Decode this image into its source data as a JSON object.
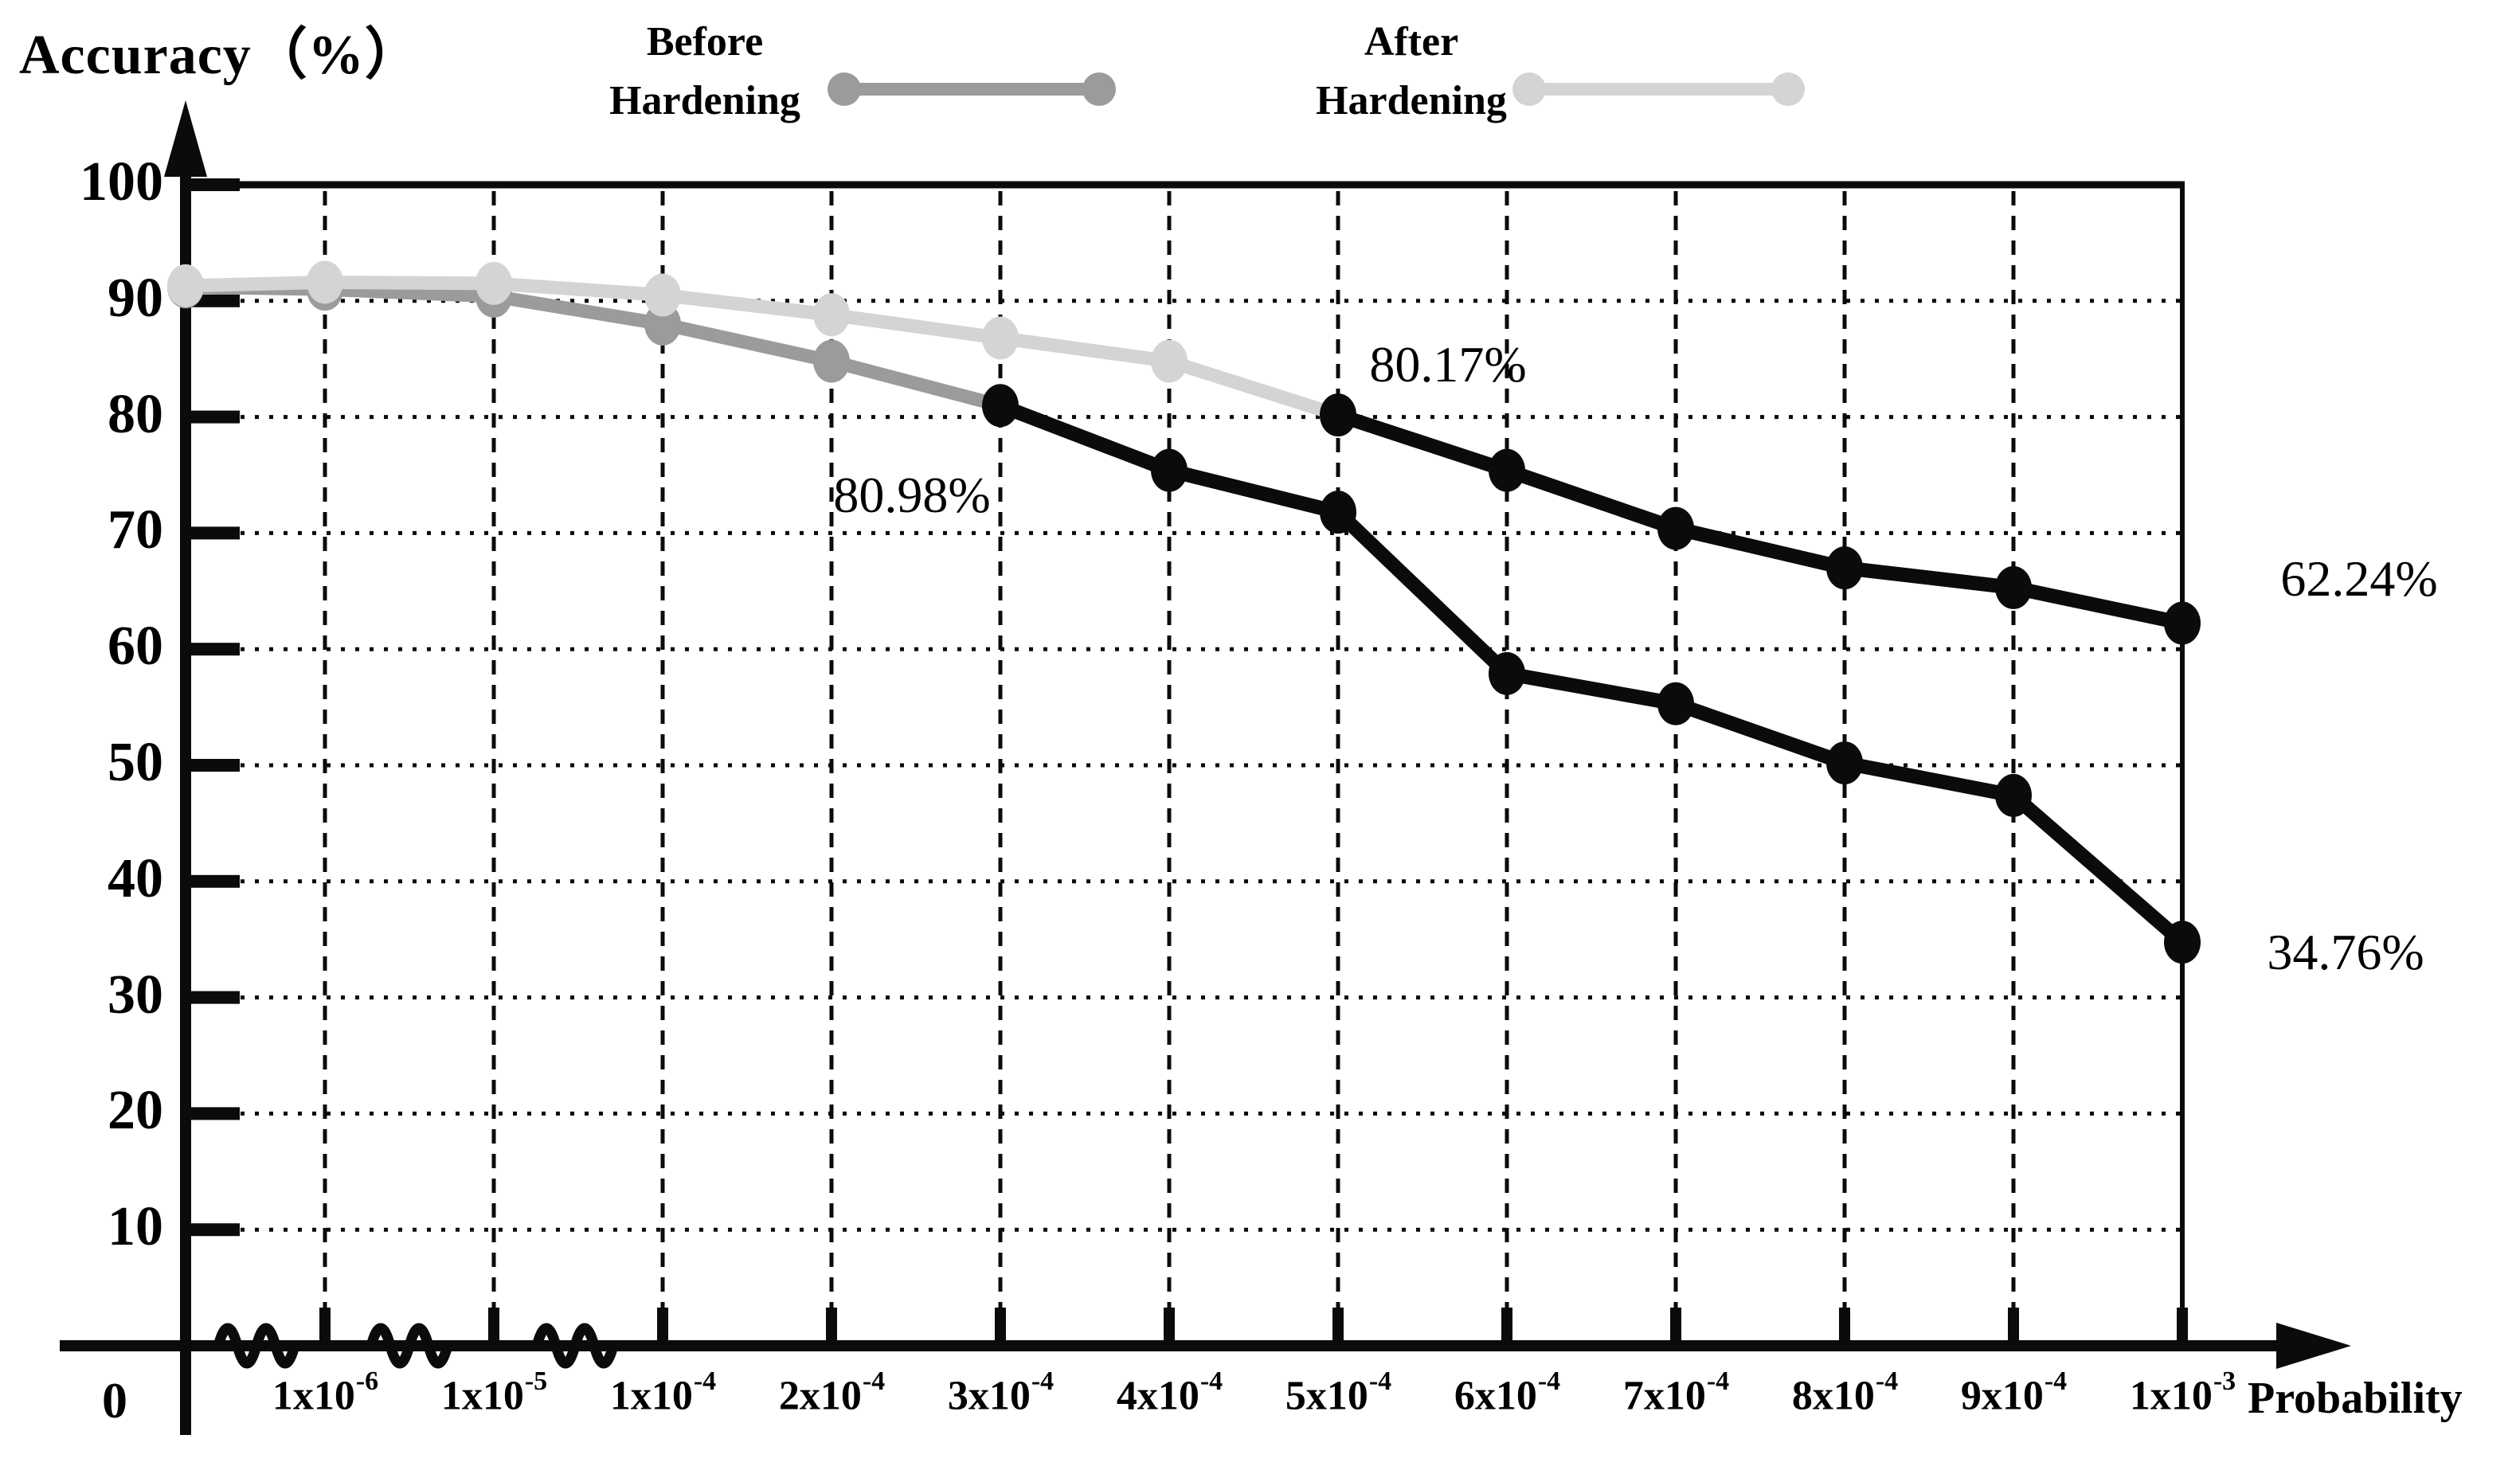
{
  "title": "Accuracy（%）",
  "legend": {
    "items": [
      {
        "line1": "Before",
        "line2": "Hardening",
        "color": "#9b9b9b"
      },
      {
        "line1": "After",
        "line2": "Hardening",
        "color": "#d4d4d4"
      }
    ]
  },
  "chart_data": {
    "type": "line",
    "title": "Accuracy（%）",
    "xlabel": "Probability",
    "ylabel": "Accuracy (%)",
    "grid": true,
    "x_axis_has_scale_breaks": true,
    "y_axis": {
      "min": 0,
      "max": 100,
      "tick_step": 10,
      "ticks": [
        100,
        90,
        80,
        70,
        60,
        50,
        40,
        30,
        20,
        10
      ],
      "origin_label": "0"
    },
    "x_ticks": [
      {
        "base": "1x10",
        "exp": "-6"
      },
      {
        "base": "1x10",
        "exp": "-5"
      },
      {
        "base": "1x10",
        "exp": "-4"
      },
      {
        "base": "2x10",
        "exp": "-4"
      },
      {
        "base": "3x10",
        "exp": "-4"
      },
      {
        "base": "4x10",
        "exp": "-4"
      },
      {
        "base": "5x10",
        "exp": "-4"
      },
      {
        "base": "6x10",
        "exp": "-4"
      },
      {
        "base": "7x10",
        "exp": "-4"
      },
      {
        "base": "8x10",
        "exp": "-4"
      },
      {
        "base": "9x10",
        "exp": "-4"
      },
      {
        "base": "1x10",
        "exp": "-3"
      }
    ],
    "x": [
      "0",
      "1x10⁻⁶",
      "1x10⁻⁵",
      "1x10⁻⁴",
      "2x10⁻⁴",
      "3x10⁻⁴",
      "4x10⁻⁴",
      "5x10⁻⁴",
      "6x10⁻⁴",
      "7x10⁻⁴",
      "8x10⁻⁴",
      "9x10⁻⁴",
      "1x10⁻³"
    ],
    "series": [
      {
        "name": "Before Hardening",
        "color": "#9b9b9b",
        "color_after_transition": "#0b0b0b",
        "transition_x": "3x10⁻⁴",
        "transition_index": 5,
        "values": [
          91.2,
          91.0,
          90.4,
          88.0,
          84.8,
          80.98,
          75.4,
          71.8,
          57.9,
          55.3,
          50.2,
          47.4,
          34.76
        ]
      },
      {
        "name": "After Hardening",
        "color": "#d4d4d4",
        "color_after_transition": "#0b0b0b",
        "transition_x": "5x10⁻⁴",
        "transition_index": 7,
        "values": [
          91.3,
          91.6,
          91.5,
          90.5,
          88.8,
          86.8,
          84.8,
          80.17,
          75.4,
          70.4,
          67.0,
          65.3,
          62.24
        ]
      }
    ],
    "annotations": [
      {
        "text": "80.98%",
        "series": "Before Hardening",
        "at_x": "3x10⁻⁴"
      },
      {
        "text": "80.17%",
        "series": "After Hardening",
        "at_x": "5x10⁻⁴"
      },
      {
        "text": "62.24%",
        "series": "After Hardening",
        "at_x": "1x10⁻³"
      },
      {
        "text": "34.76%",
        "series": "Before Hardening",
        "at_x": "1x10⁻³"
      }
    ]
  }
}
